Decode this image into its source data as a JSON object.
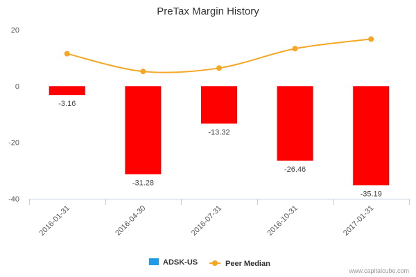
{
  "chart_data": {
    "type": "bar",
    "title": "PreTax Margin History",
    "categories": [
      "2016-01-31",
      "2016-04-30",
      "2016-07-31",
      "2016-10-31",
      "2017-01-31"
    ],
    "series": [
      {
        "name": "ADSK-US",
        "type": "bar",
        "values": [
          -3.16,
          -31.28,
          -13.32,
          -26.46,
          -35.19
        ],
        "labels": [
          "-3.16",
          "-31.28",
          "-13.32",
          "-26.46",
          "-35.19"
        ],
        "color": "#ff0000",
        "legend_color": "#1e9be8"
      },
      {
        "name": "Peer Median",
        "type": "line",
        "values": [
          11.5,
          5.2,
          6.4,
          13.3,
          16.7
        ],
        "color": "#f5a623"
      }
    ],
    "y_ticks": [
      "20",
      "0",
      "-20",
      "-40"
    ],
    "ylim": [
      -40,
      20
    ],
    "grid": false,
    "legend_position": "bottom-center",
    "xlabel": "",
    "ylabel": ""
  },
  "credit": "www.capitalcube.com"
}
